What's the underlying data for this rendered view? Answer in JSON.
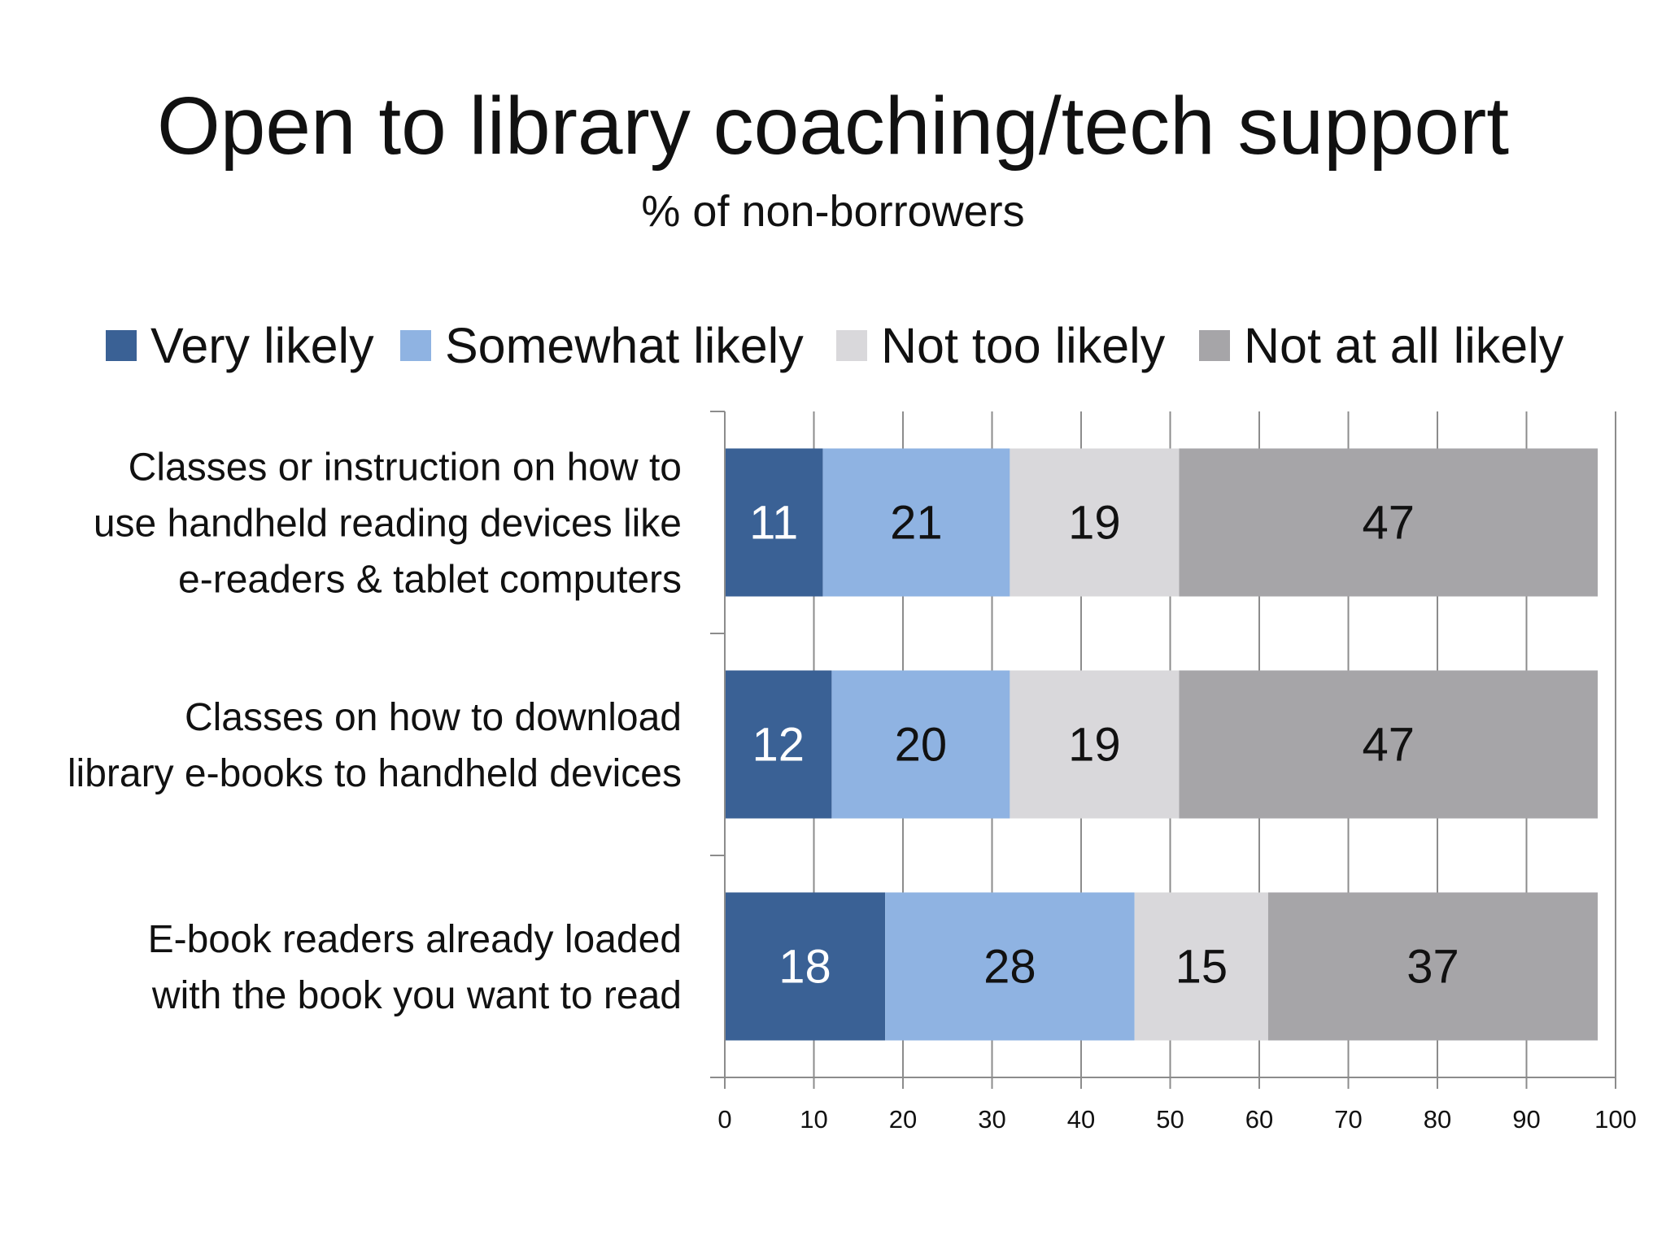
{
  "chart_data": {
    "type": "bar",
    "orientation": "horizontal",
    "stacked": true,
    "title": "Open to library coaching/tech support",
    "subtitle": "% of non-borrowers",
    "categories": [
      [
        "Classes or instruction on how to",
        "use handheld reading devices like",
        "e-readers & tablet computers"
      ],
      [
        "Classes on how to download",
        "library e-books to handheld devices"
      ],
      [
        "E-book readers already loaded",
        "with the book you want to read"
      ]
    ],
    "series": [
      {
        "name": "Very likely",
        "color": "#3a6195",
        "label_color": "#ffffff",
        "values": [
          11,
          12,
          18
        ]
      },
      {
        "name": "Somewhat likely",
        "color": "#8fb3e2",
        "label_color": "#111111",
        "values": [
          21,
          20,
          28
        ]
      },
      {
        "name": "Not too likely",
        "color": "#d9d8db",
        "label_color": "#111111",
        "values": [
          19,
          19,
          15
        ]
      },
      {
        "name": "Not at all likely",
        "color": "#a6a5a8",
        "label_color": "#111111",
        "values": [
          47,
          47,
          37
        ]
      }
    ],
    "xlim": [
      0,
      100
    ],
    "xticks": [
      0,
      10,
      20,
      30,
      40,
      50,
      60,
      70,
      80,
      90,
      100
    ],
    "grid": "vertical",
    "legend_position": "top",
    "data_labels": true
  }
}
